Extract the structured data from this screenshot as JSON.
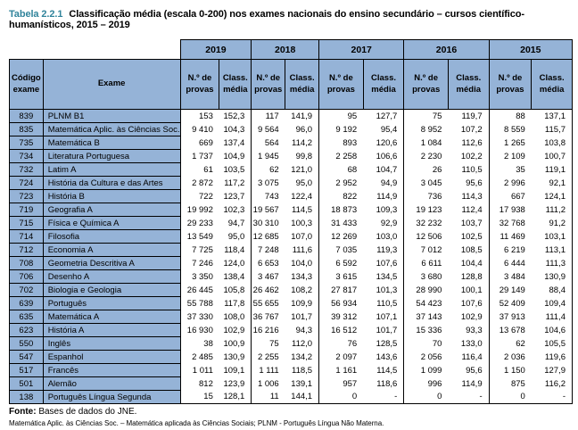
{
  "title": {
    "label": "Tabela 2.2.1",
    "text": "Classificação média (escala 0-200) nos exames nacionais do ensino secundário – cursos científico-humanísticos, 2015 – 2019"
  },
  "table": {
    "col_code": "Código exame",
    "col_exam": "Exame",
    "years": [
      "2019",
      "2018",
      "2017",
      "2016",
      "2015"
    ],
    "subheaders": {
      "n": "N.º de provas",
      "c": "Class. média"
    },
    "rows": [
      {
        "code": "839",
        "exam": "PLNM B1",
        "values": [
          "153",
          "152,3",
          "117",
          "141,9",
          "95",
          "127,7",
          "75",
          "119,7",
          "88",
          "137,1"
        ]
      },
      {
        "code": "835",
        "exam": "Matemática Aplic. às Ciências Soc.",
        "values": [
          "9 410",
          "104,3",
          "9 564",
          "96,0",
          "9 192",
          "95,4",
          "8 952",
          "107,2",
          "8 559",
          "115,7"
        ]
      },
      {
        "code": "735",
        "exam": "Matemática B",
        "values": [
          "669",
          "137,4",
          "564",
          "114,2",
          "893",
          "120,6",
          "1 084",
          "112,6",
          "1 265",
          "103,8"
        ]
      },
      {
        "code": "734",
        "exam": "Literatura Portuguesa",
        "values": [
          "1 737",
          "104,9",
          "1 945",
          "99,8",
          "2 258",
          "106,6",
          "2 230",
          "102,2",
          "2 109",
          "100,7"
        ]
      },
      {
        "code": "732",
        "exam": "Latim A",
        "values": [
          "61",
          "103,5",
          "62",
          "121,0",
          "68",
          "104,7",
          "26",
          "110,5",
          "35",
          "119,1"
        ]
      },
      {
        "code": "724",
        "exam": "História da Cultura e das Artes",
        "values": [
          "2 872",
          "117,2",
          "3 075",
          "95,0",
          "2 952",
          "94,9",
          "3 045",
          "95,6",
          "2 996",
          "92,1"
        ]
      },
      {
        "code": "723",
        "exam": "História B",
        "values": [
          "722",
          "123,7",
          "743",
          "122,4",
          "822",
          "114,9",
          "736",
          "114,3",
          "667",
          "124,1"
        ]
      },
      {
        "code": "719",
        "exam": "Geografia A",
        "values": [
          "19 992",
          "102,3",
          "19 567",
          "114,5",
          "18 873",
          "109,3",
          "19 123",
          "112,4",
          "17 938",
          "111,2"
        ]
      },
      {
        "code": "715",
        "exam": "Física e Química A",
        "values": [
          "29 233",
          "94,7",
          "30 310",
          "100,3",
          "31 433",
          "92,9",
          "32 232",
          "103,7",
          "32 768",
          "91,2"
        ]
      },
      {
        "code": "714",
        "exam": "Filosofia",
        "values": [
          "13 549",
          "95,0",
          "12 685",
          "107,0",
          "12 269",
          "103,0",
          "12 506",
          "102,5",
          "11 469",
          "103,1"
        ]
      },
      {
        "code": "712",
        "exam": "Economia A",
        "values": [
          "7 725",
          "118,4",
          "7 248",
          "111,6",
          "7 035",
          "119,3",
          "7 012",
          "108,5",
          "6 219",
          "113,1"
        ]
      },
      {
        "code": "708",
        "exam": "Geometria Descritiva A",
        "values": [
          "7 246",
          "124,0",
          "6 653",
          "104,0",
          "6 592",
          "107,6",
          "6 611",
          "104,4",
          "6 444",
          "111,3"
        ]
      },
      {
        "code": "706",
        "exam": "Desenho A",
        "values": [
          "3 350",
          "138,4",
          "3 467",
          "134,3",
          "3 615",
          "134,5",
          "3 680",
          "128,8",
          "3 484",
          "130,9"
        ]
      },
      {
        "code": "702",
        "exam": "Biologia e Geologia",
        "values": [
          "26 445",
          "105,8",
          "26 462",
          "108,2",
          "27 817",
          "101,3",
          "28 990",
          "100,1",
          "29 149",
          "88,4"
        ]
      },
      {
        "code": "639",
        "exam": "Português",
        "values": [
          "55 788",
          "117,8",
          "55 655",
          "109,9",
          "56 934",
          "110,5",
          "54 423",
          "107,6",
          "52 409",
          "109,4"
        ]
      },
      {
        "code": "635",
        "exam": "Matemática A",
        "values": [
          "37 330",
          "108,0",
          "36 767",
          "101,7",
          "39 312",
          "107,1",
          "37 143",
          "102,9",
          "37 913",
          "111,4"
        ]
      },
      {
        "code": "623",
        "exam": "História A",
        "values": [
          "16 930",
          "102,9",
          "16 216",
          "94,3",
          "16 512",
          "101,7",
          "15 336",
          "93,3",
          "13 678",
          "104,6"
        ]
      },
      {
        "code": "550",
        "exam": "Inglês",
        "values": [
          "38",
          "100,9",
          "75",
          "112,0",
          "76",
          "128,5",
          "70",
          "133,0",
          "62",
          "105,5"
        ]
      },
      {
        "code": "547",
        "exam": "Espanhol",
        "values": [
          "2 485",
          "130,9",
          "2 255",
          "134,2",
          "2 097",
          "143,6",
          "2 056",
          "116,4",
          "2 036",
          "119,6"
        ]
      },
      {
        "code": "517",
        "exam": "Francês",
        "values": [
          "1 011",
          "109,1",
          "1 111",
          "118,5",
          "1 161",
          "114,5",
          "1 099",
          "95,6",
          "1 150",
          "127,9"
        ]
      },
      {
        "code": "501",
        "exam": "Alemão",
        "values": [
          "812",
          "123,9",
          "1 006",
          "139,1",
          "957",
          "118,6",
          "996",
          "114,9",
          "875",
          "116,2"
        ]
      },
      {
        "code": "138",
        "exam": "Português Língua Segunda",
        "values": [
          "15",
          "128,1",
          "11",
          "144,1",
          "0",
          "-",
          "0",
          "-",
          "0",
          "-"
        ]
      }
    ]
  },
  "footer": {
    "source_label": "Fonte:",
    "source_text": "Bases de dados do JNE.",
    "note": "Matemática Aplic. às Ciências Soc. – Matemática aplicada às Ciências Sociais; PLNM - Português Língua Não Materna."
  },
  "colors": {
    "header_fill": "#95B3D7",
    "title_accent": "#31849B",
    "border": "#000000"
  }
}
